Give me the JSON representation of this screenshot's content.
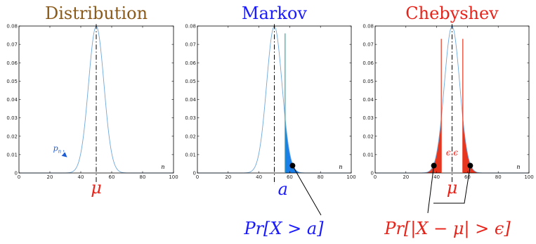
{
  "chart_data": [
    {
      "type": "line",
      "title": "Distribution",
      "title_color": "#8a5a1a",
      "xlim": [
        0,
        100
      ],
      "ylim": [
        0,
        0.08
      ],
      "xticks": [
        0,
        20,
        40,
        60,
        80,
        100
      ],
      "yticks": [
        0,
        0.01,
        0.02,
        0.03,
        0.04,
        0.05,
        0.06,
        0.07,
        0.08
      ],
      "xlabel": "n",
      "grid": false,
      "series": [
        {
          "mean": 50,
          "std": 5,
          "color": "#6fa8dc"
        }
      ],
      "annotations": [
        {
          "label": "μ",
          "x": 50,
          "color": "#e8231a"
        },
        {
          "label": "p",
          "subscript": "n",
          "x": 33,
          "y": 0.012,
          "color": "#1a5bd6"
        }
      ]
    },
    {
      "type": "area",
      "title": "Markov",
      "title_color": "#1a1aff",
      "xlim": [
        0,
        100
      ],
      "ylim": [
        0,
        0.08
      ],
      "xticks": [
        0,
        20,
        40,
        60,
        80,
        100
      ],
      "yticks": [
        0,
        0.01,
        0.02,
        0.03,
        0.04,
        0.05,
        0.06,
        0.07,
        0.08
      ],
      "xlabel": "n",
      "grid": false,
      "series": [
        {
          "mean": 50,
          "std": 5,
          "color": "#6fa8dc"
        }
      ],
      "shaded": [
        {
          "from": 57,
          "to": 100,
          "color": "#1a7fe8"
        }
      ],
      "annotations": [
        {
          "label": "a",
          "x": 57,
          "color": "#1a1aff"
        },
        {
          "label": "Pr[X > a]",
          "x": 60,
          "y": 0.004,
          "color": "#1a1aff"
        }
      ]
    },
    {
      "type": "area",
      "title": "Chebyshev",
      "title_color": "#e8231a",
      "xlim": [
        0,
        100
      ],
      "ylim": [
        0,
        0.08
      ],
      "xticks": [
        0,
        20,
        40,
        60,
        80,
        100
      ],
      "yticks": [
        0,
        0.01,
        0.02,
        0.03,
        0.04,
        0.05,
        0.06,
        0.07,
        0.08
      ],
      "xlabel": "n",
      "grid": false,
      "series": [
        {
          "mean": 50,
          "std": 5,
          "color": "#6fa8dc"
        }
      ],
      "shaded": [
        {
          "from": 0,
          "to": 43,
          "color": "#e8361e"
        },
        {
          "from": 57,
          "to": 100,
          "color": "#e8361e"
        }
      ],
      "annotations": [
        {
          "label": "μ",
          "x": 50,
          "color": "#e8231a"
        },
        {
          "label": "ϵ.ϵ",
          "x": 50,
          "color": "#e8231a"
        },
        {
          "label": "Pr[|X − μ| > ϵ]",
          "x": [
            40,
            60
          ],
          "y": 0.004,
          "color": "#e8231a"
        }
      ]
    }
  ]
}
